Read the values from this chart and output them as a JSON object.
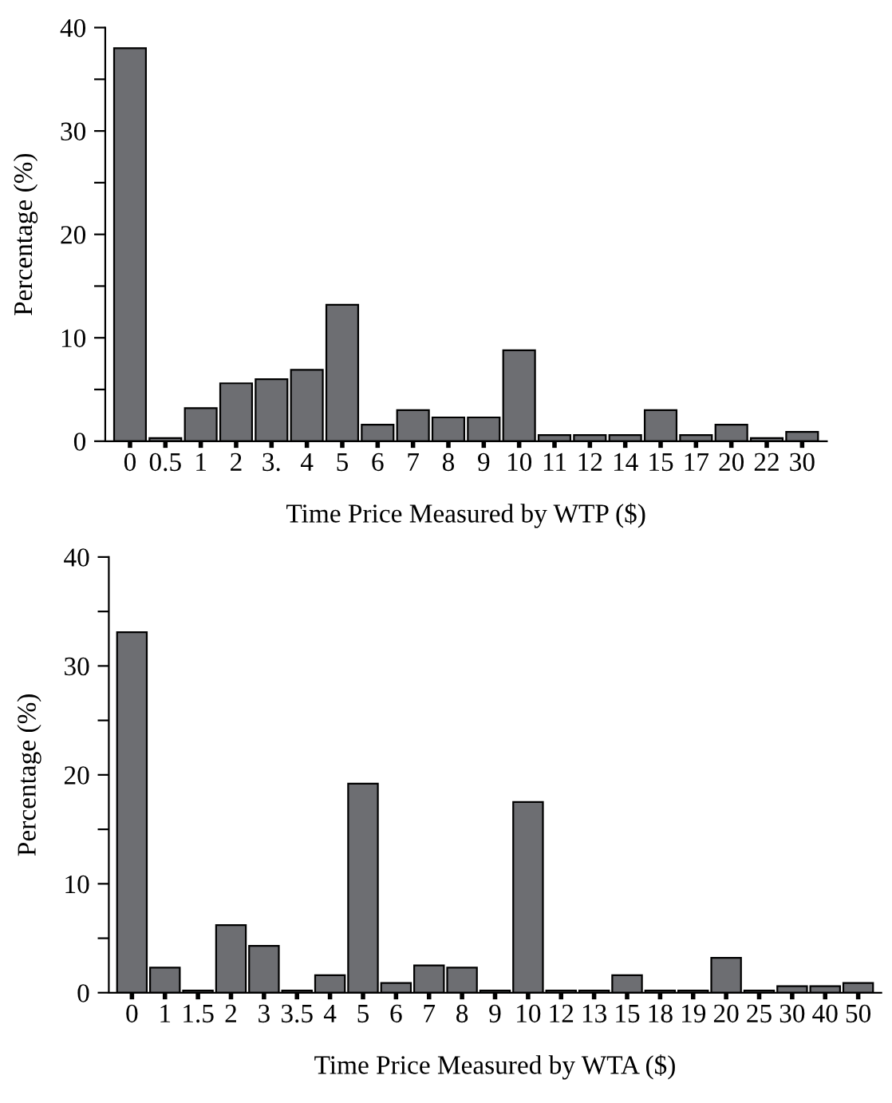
{
  "chart_data": [
    {
      "type": "bar",
      "xlabel": "Time Price Measured by WTP ($)",
      "ylabel": "Percentage (%)",
      "categories": [
        "0",
        "0.5",
        "1",
        "2",
        "3.",
        "4",
        "5",
        "6",
        "7",
        "8",
        "9",
        "10",
        "11",
        "12",
        "14",
        "15",
        "17",
        "20",
        "22",
        "30"
      ],
      "values": [
        38,
        0.3,
        3.2,
        5.6,
        6.0,
        6.9,
        13.2,
        1.6,
        3.0,
        2.3,
        2.3,
        8.8,
        0.6,
        0.6,
        0.6,
        3.0,
        0.6,
        1.6,
        0.3,
        0.9
      ],
      "color": "#6d6e72",
      "ylim": [
        0,
        40
      ],
      "yticks": [
        0,
        {
          "value": 5,
          "label": null
        },
        10,
        {
          "value": 15,
          "label": null
        },
        20,
        {
          "value": 25,
          "label": null
        },
        30,
        {
          "value": 35,
          "label": null
        },
        40
      ],
      "grid": false,
      "legend": false
    },
    {
      "type": "bar",
      "xlabel": "Time Price Measured by WTA ($)",
      "ylabel": "Percentage (%)",
      "categories": [
        "0",
        "1",
        "1.5",
        "2",
        "3",
        "3.5",
        "4",
        "5",
        "6",
        "7",
        "8",
        "9",
        "10",
        "12",
        "13",
        "15",
        "18",
        "19",
        "20",
        "25",
        "30",
        "40",
        "50"
      ],
      "values": [
        33.1,
        2.3,
        0.2,
        6.2,
        4.3,
        0.2,
        1.6,
        19.2,
        0.9,
        2.5,
        2.3,
        0.2,
        17.5,
        0.2,
        0.2,
        1.6,
        0.2,
        0.2,
        3.2,
        0.2,
        0.6,
        0.6,
        0.9
      ],
      "color": "#6d6e72",
      "ylim": [
        0,
        40
      ],
      "yticks": [
        0,
        {
          "value": 5,
          "label": null
        },
        10,
        {
          "value": 15,
          "label": null
        },
        20,
        {
          "value": 25,
          "label": null
        },
        30,
        {
          "value": 35,
          "label": null
        },
        40
      ],
      "grid": false,
      "legend": false
    }
  ]
}
